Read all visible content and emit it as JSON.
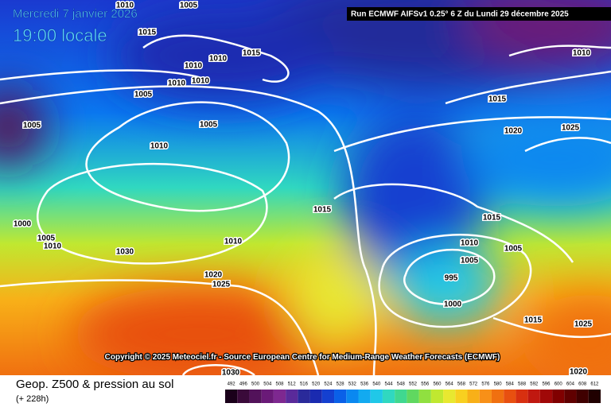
{
  "header": {
    "date": "Mercredi 7 janvier 2026",
    "time": "19:00 locale",
    "run": "Run ECMWF AIFSv1 0.25° 6 Z du Lundi 29 décembre 2025"
  },
  "isobar_labels": [
    "1010",
    "1005",
    "1015",
    "1010",
    "1010",
    "1015",
    "1010",
    "1010",
    "1005",
    "1005",
    "1005",
    "1010",
    "1000",
    "1005",
    "1010",
    "1030",
    "1010",
    "1020",
    "1025",
    "1015",
    "1015",
    "1010",
    "1005",
    "1005",
    "995",
    "1000",
    "1015",
    "1025",
    "1020",
    "1030",
    "1010",
    "1015",
    "1020",
    "1025"
  ],
  "copyright": "Copyright © 2025 Meteociel.fr - Source European Centre for Medium-Range Weather Forecasts (ECMWF)",
  "legend": {
    "title": "Geop. Z500 & pression au sol",
    "lead": "(+ 228h)",
    "ticks": [
      492,
      496,
      500,
      504,
      508,
      512,
      516,
      520,
      524,
      528,
      532,
      536,
      540,
      544,
      548,
      552,
      556,
      560,
      564,
      568,
      572,
      576,
      580,
      584,
      588,
      592,
      596,
      600,
      604,
      608,
      612
    ],
    "colors": [
      "#1a001a",
      "#3a0a3a",
      "#52125a",
      "#6a1a78",
      "#7e2890",
      "#5a2a9a",
      "#2a2a9a",
      "#1a2ab0",
      "#1440d0",
      "#0a60e8",
      "#0a88f0",
      "#12aaf0",
      "#20c8e8",
      "#30d8c0",
      "#40d890",
      "#60d860",
      "#90e040",
      "#c0e830",
      "#e8e830",
      "#f8d020",
      "#f8b018",
      "#f89018",
      "#f07010",
      "#e85010",
      "#d83010",
      "#c01810",
      "#a00808",
      "#800000",
      "#600000",
      "#400000",
      "#200000"
    ]
  }
}
